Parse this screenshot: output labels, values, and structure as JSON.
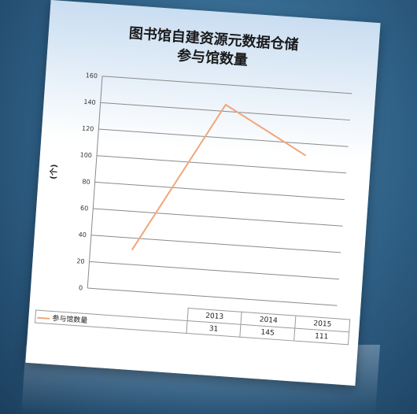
{
  "chart_data": {
    "type": "line",
    "title": "图书馆自建资源元数据仓储\n参与馆数量",
    "ylabel": "(个)",
    "ylim": [
      0,
      160
    ],
    "yticks": [
      0,
      20,
      40,
      60,
      80,
      100,
      120,
      140,
      160
    ],
    "categories": [
      "2013",
      "2014",
      "2015"
    ],
    "series": [
      {
        "name": "参与馆数量",
        "values": [
          31,
          145,
          111
        ]
      }
    ],
    "grid": true,
    "legend": "data-table",
    "colors": {
      "line": "#f2a57a",
      "grid": "#8a8a8a",
      "background_top": "#c9ddf1"
    }
  }
}
